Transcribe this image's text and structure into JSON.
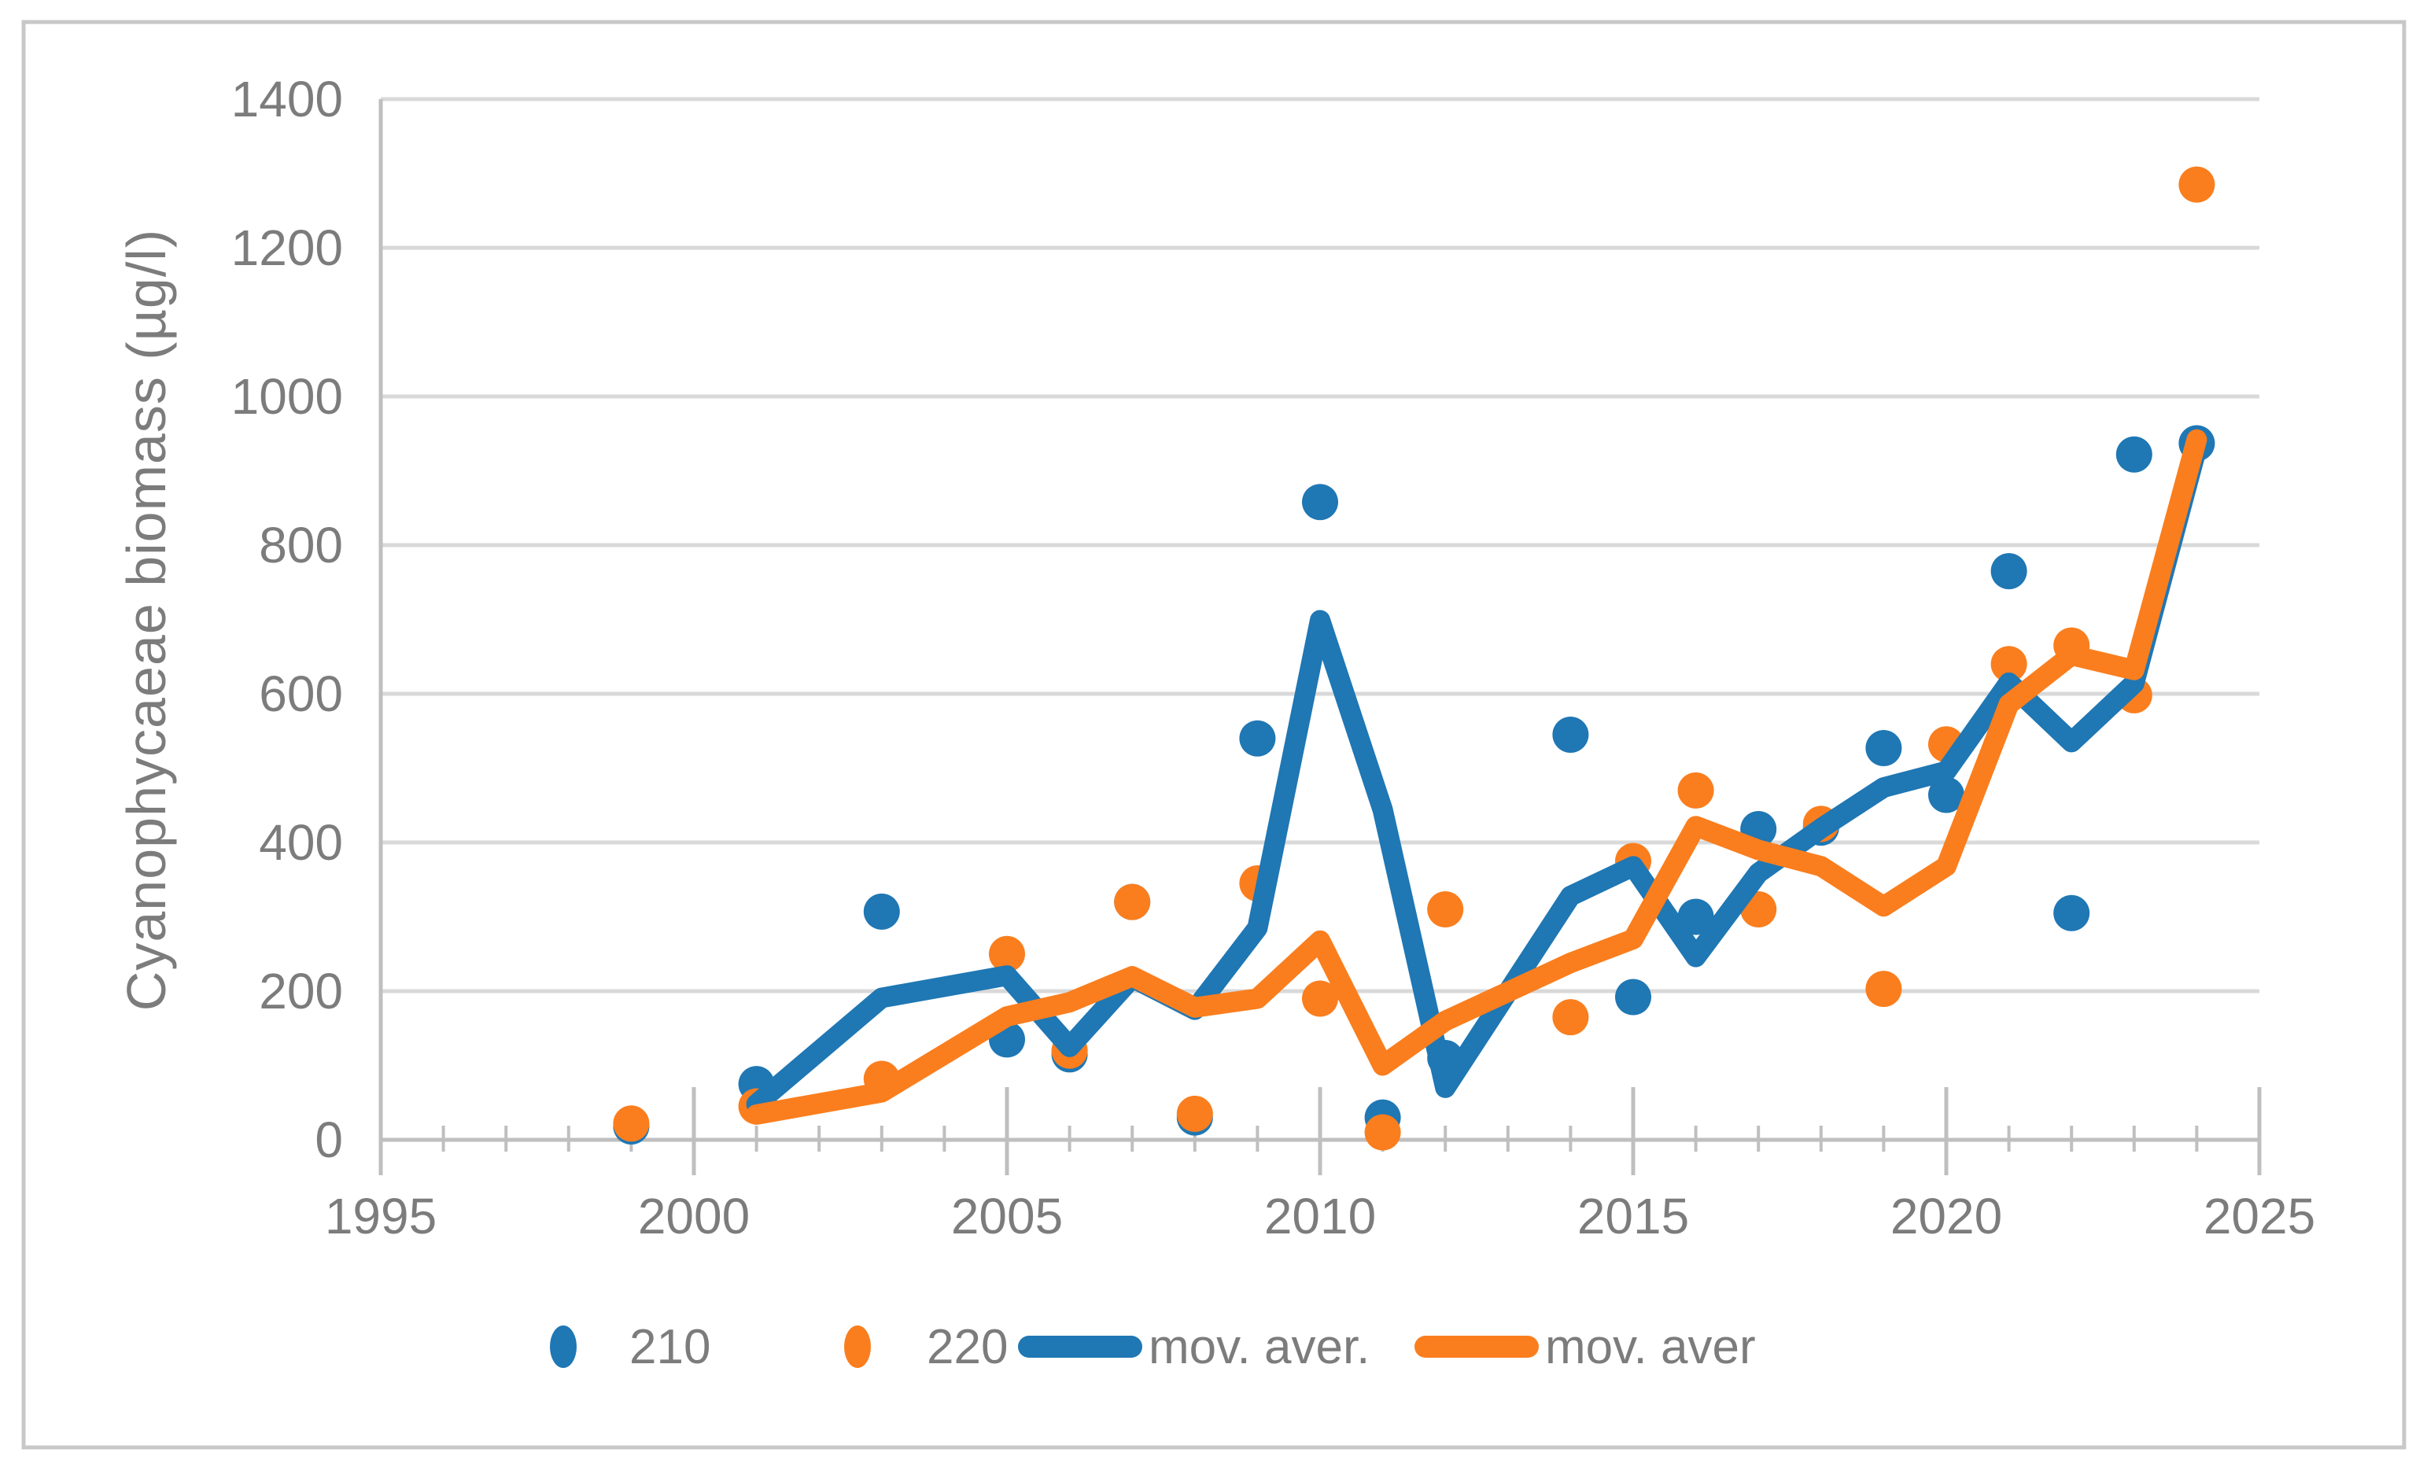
{
  "figure": {
    "kind": "excel-style scatter chart with moving average trendlines",
    "background": "#ffffff"
  },
  "colors": {
    "series_blue": "#1F77B4",
    "series_orange": "#FA7E1E",
    "gridline": "#D9D9D9",
    "axis_line": "#BFBFBF",
    "tick_label": "#7C7C7C",
    "axis_title": "#7C7C7C",
    "frame_border": "#C8C8C8"
  },
  "legend": {
    "items": [
      {
        "label": "210",
        "swatch": "marker",
        "color": "#1F77B4"
      },
      {
        "label": "220",
        "swatch": "marker",
        "color": "#FA7E1E"
      },
      {
        "label": "mov. aver.",
        "swatch": "line",
        "color": "#1F77B4"
      },
      {
        "label": "mov. aver",
        "swatch": "line",
        "color": "#FA7E1E"
      }
    ]
  },
  "chart_data": {
    "type": "scatter",
    "title": "",
    "xlabel": "",
    "ylabel": "Cyanophycaeae biomass (µg/l)",
    "xlim": [
      1995,
      2025
    ],
    "ylim": [
      0,
      1400
    ],
    "x_ticks": [
      1995,
      2000,
      2005,
      2010,
      2015,
      2020,
      2025
    ],
    "x_minor_tick_step": 1,
    "y_ticks": [
      0,
      200,
      400,
      600,
      800,
      1000,
      1200,
      1400
    ],
    "grid": "horizontal",
    "legend_position": "bottom",
    "series": [
      {
        "name": "210",
        "render": "scatter",
        "color": "#1F77B4",
        "points": [
          [
            1999,
            18
          ],
          [
            2001,
            75
          ],
          [
            2003,
            307
          ],
          [
            2005,
            135
          ],
          [
            2006,
            115
          ],
          [
            2007,
            320
          ],
          [
            2008,
            30
          ],
          [
            2009,
            540
          ],
          [
            2010,
            858
          ],
          [
            2011,
            30
          ],
          [
            2012,
            110
          ],
          [
            2014,
            545
          ],
          [
            2015,
            192
          ],
          [
            2016,
            300
          ],
          [
            2017,
            418
          ],
          [
            2018,
            420
          ],
          [
            2019,
            527
          ],
          [
            2020,
            464
          ],
          [
            2021,
            765
          ],
          [
            2022,
            305
          ],
          [
            2023,
            922
          ],
          [
            2024,
            937
          ]
        ]
      },
      {
        "name": "220",
        "render": "scatter",
        "color": "#FA7E1E",
        "points": [
          [
            1999,
            22
          ],
          [
            2001,
            45
          ],
          [
            2003,
            82
          ],
          [
            2005,
            250
          ],
          [
            2006,
            120
          ],
          [
            2007,
            320
          ],
          [
            2008,
            35
          ],
          [
            2009,
            345
          ],
          [
            2010,
            190
          ],
          [
            2011,
            10
          ],
          [
            2012,
            310
          ],
          [
            2014,
            165
          ],
          [
            2015,
            375
          ],
          [
            2016,
            470
          ],
          [
            2017,
            310
          ],
          [
            2018,
            425
          ],
          [
            2019,
            203
          ],
          [
            2020,
            532
          ],
          [
            2021,
            640
          ],
          [
            2022,
            665
          ],
          [
            2023,
            598
          ],
          [
            2024,
            1285
          ]
        ]
      },
      {
        "name": "mov. aver.",
        "render": "line",
        "color": "#1F77B4",
        "points": [
          [
            2001,
            48
          ],
          [
            2003,
            191
          ],
          [
            2005,
            221
          ],
          [
            2006,
            125
          ],
          [
            2007,
            218
          ],
          [
            2008,
            175
          ],
          [
            2009,
            285
          ],
          [
            2010,
            699
          ],
          [
            2011,
            444
          ],
          [
            2012,
            70
          ],
          [
            2014,
            328
          ],
          [
            2015,
            368
          ],
          [
            2016,
            246
          ],
          [
            2017,
            359
          ],
          [
            2018,
            419
          ],
          [
            2019,
            474
          ],
          [
            2020,
            496
          ],
          [
            2021,
            615
          ],
          [
            2022,
            535
          ],
          [
            2023,
            614
          ],
          [
            2024,
            930
          ]
        ]
      },
      {
        "name": "mov. aver",
        "render": "line",
        "color": "#FA7E1E",
        "points": [
          [
            2001,
            34
          ],
          [
            2003,
            64
          ],
          [
            2005,
            166
          ],
          [
            2006,
            185
          ],
          [
            2007,
            220
          ],
          [
            2008,
            178
          ],
          [
            2009,
            190
          ],
          [
            2010,
            268
          ],
          [
            2011,
            100
          ],
          [
            2012,
            160
          ],
          [
            2014,
            238
          ],
          [
            2015,
            270
          ],
          [
            2016,
            422
          ],
          [
            2017,
            390
          ],
          [
            2018,
            368
          ],
          [
            2019,
            314
          ],
          [
            2020,
            368
          ],
          [
            2021,
            586
          ],
          [
            2022,
            652
          ],
          [
            2023,
            632
          ],
          [
            2024,
            942
          ]
        ]
      }
    ]
  }
}
